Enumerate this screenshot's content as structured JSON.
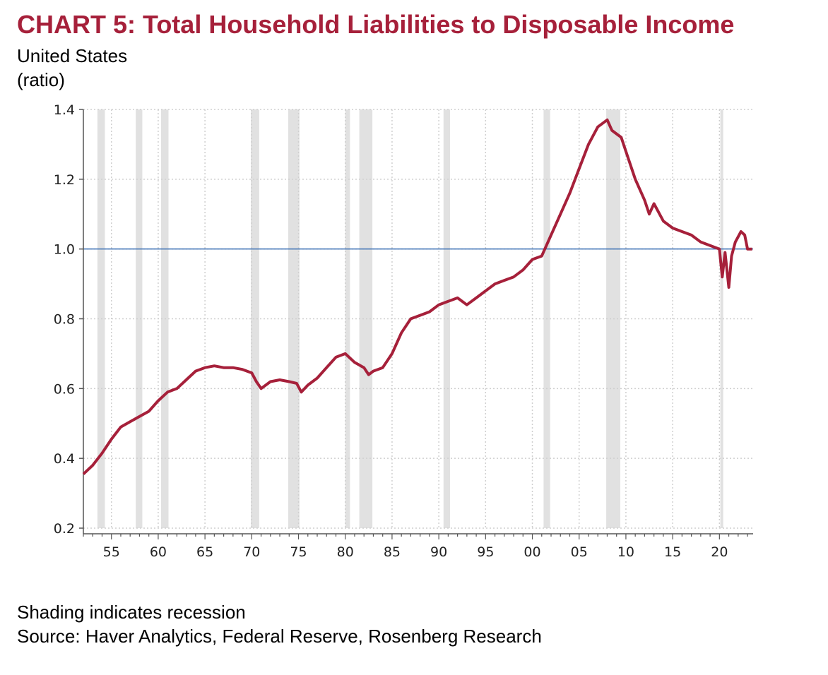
{
  "header": {
    "title": "CHART 5: Total Household Liabilities to Disposable Income",
    "subtitle": "United States",
    "unit": "(ratio)"
  },
  "footer": {
    "note": "Shading indicates recession",
    "source": "Source: Haver Analytics, Federal Reserve, Rosenberg Research"
  },
  "colors": {
    "series": "#a6203a",
    "reference_line": "#3a6fb5",
    "recession": "#e1e1e1",
    "grid": "#cfcfcf"
  },
  "chart_data": {
    "type": "line",
    "title": "CHART 5: Total Household Liabilities to Disposable Income",
    "ylabel": "(ratio)",
    "xlim": [
      1952.0,
      2023.6
    ],
    "ylim": [
      0.2,
      1.4
    ],
    "y_ticks": [
      0.2,
      0.4,
      0.6,
      0.8,
      1.0,
      1.2,
      1.4
    ],
    "y_tick_labels": [
      "0.2",
      "0.4",
      "0.6",
      "0.8",
      "1.0",
      "1.2",
      "1.4"
    ],
    "x_ticks": [
      1955,
      1960,
      1965,
      1970,
      1975,
      1980,
      1985,
      1990,
      1995,
      2000,
      2005,
      2010,
      2015,
      2020
    ],
    "x_tick_labels": [
      "55",
      "60",
      "65",
      "70",
      "75",
      "80",
      "85",
      "90",
      "95",
      "00",
      "05",
      "10",
      "15",
      "20"
    ],
    "grid": true,
    "reference_line": 1.0,
    "recessions": [
      [
        1953.5,
        1954.3
      ],
      [
        1957.6,
        1958.3
      ],
      [
        1960.3,
        1961.1
      ],
      [
        1969.9,
        1970.8
      ],
      [
        1973.9,
        1975.1
      ],
      [
        1980.0,
        1980.5
      ],
      [
        1981.5,
        1982.9
      ],
      [
        1990.5,
        1991.2
      ],
      [
        2001.2,
        2001.9
      ],
      [
        2007.9,
        2009.4
      ],
      [
        2020.1,
        2020.4
      ]
    ],
    "series": [
      {
        "x": [
          1952.0,
          1953.0,
          1954.0,
          1955.0,
          1956.0,
          1957.0,
          1958.0,
          1959.0,
          1960.0,
          1961.0,
          1962.0,
          1963.0,
          1964.0,
          1965.0,
          1966.0,
          1967.0,
          1968.0,
          1969.0,
          1970.0,
          1970.5,
          1971.0,
          1972.0,
          1973.0,
          1974.0,
          1974.8,
          1975.3,
          1976.0,
          1977.0,
          1978.0,
          1979.0,
          1980.0,
          1981.0,
          1982.0,
          1982.5,
          1983.0,
          1984.0,
          1985.0,
          1986.0,
          1987.0,
          1988.0,
          1989.0,
          1990.0,
          1991.0,
          1992.0,
          1993.0,
          1994.0,
          1995.0,
          1996.0,
          1997.0,
          1998.0,
          1999.0,
          2000.0,
          2001.0,
          2002.0,
          2003.0,
          2004.0,
          2005.0,
          2006.0,
          2007.0,
          2007.5,
          2008.0,
          2008.5,
          2009.0,
          2009.5,
          2010.0,
          2011.0,
          2012.0,
          2012.5,
          2013.0,
          2014.0,
          2015.0,
          2016.0,
          2017.0,
          2018.0,
          2019.0,
          2020.0,
          2020.3,
          2020.6,
          2021.0,
          2021.3,
          2021.7,
          2022.3,
          2022.7,
          2023.0,
          2023.5
        ],
        "values": [
          0.355,
          0.38,
          0.415,
          0.455,
          0.49,
          0.505,
          0.52,
          0.535,
          0.565,
          0.59,
          0.6,
          0.625,
          0.65,
          0.66,
          0.665,
          0.66,
          0.66,
          0.655,
          0.645,
          0.62,
          0.6,
          0.62,
          0.625,
          0.62,
          0.615,
          0.59,
          0.61,
          0.63,
          0.66,
          0.69,
          0.7,
          0.675,
          0.66,
          0.64,
          0.65,
          0.66,
          0.7,
          0.76,
          0.8,
          0.81,
          0.82,
          0.84,
          0.85,
          0.86,
          0.84,
          0.86,
          0.88,
          0.9,
          0.91,
          0.92,
          0.94,
          0.97,
          0.98,
          1.04,
          1.1,
          1.16,
          1.23,
          1.3,
          1.35,
          1.36,
          1.37,
          1.34,
          1.33,
          1.32,
          1.28,
          1.2,
          1.14,
          1.1,
          1.13,
          1.08,
          1.06,
          1.05,
          1.04,
          1.02,
          1.01,
          1.0,
          0.92,
          0.99,
          0.89,
          0.98,
          1.02,
          1.05,
          1.04,
          1.0,
          1.0
        ]
      }
    ]
  }
}
